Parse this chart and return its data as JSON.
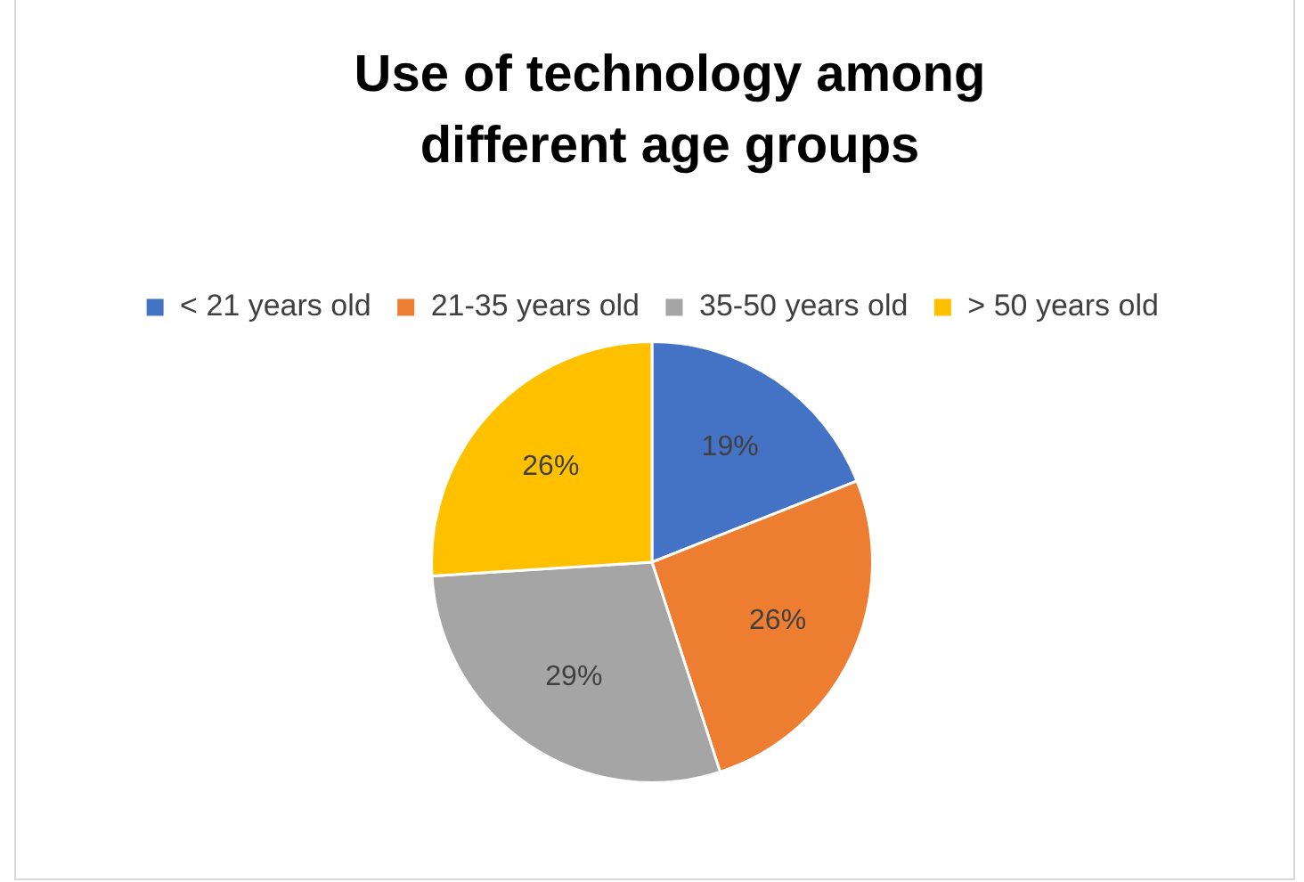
{
  "chart_data": {
    "type": "pie",
    "title": "Use of technology among different age groups",
    "categories": [
      "< 21 years old",
      "21-35 years old",
      "35-50 years old",
      "> 50 years old"
    ],
    "values": [
      19,
      26,
      29,
      26
    ],
    "colors": [
      "#4472c4",
      "#ed7d31",
      "#a5a5a5",
      "#ffc000"
    ],
    "value_labels": [
      "19%",
      "26%",
      "29%",
      "26%"
    ],
    "legend": "top"
  }
}
